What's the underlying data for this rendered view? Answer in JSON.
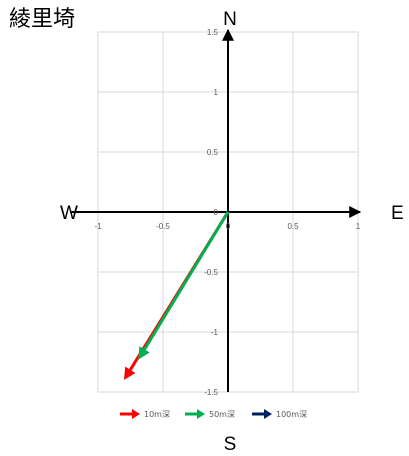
{
  "title": "綾里埼",
  "compass": {
    "north": "N",
    "south": "S",
    "east": "E",
    "west": "W"
  },
  "colors": {
    "grid": "#d9d9d9",
    "axis": "#000000",
    "tick_text": "#595959"
  },
  "chart_data": {
    "type": "scatter",
    "subtype": "vector-arrows",
    "xlim": [
      -1,
      1
    ],
    "ylim": [
      -1.5,
      1.5
    ],
    "x_ticks": [
      -1,
      -0.5,
      0,
      0.5,
      1
    ],
    "x_tick_labels": [
      "-1",
      "-0.5",
      "0",
      "0.5",
      "1"
    ],
    "y_ticks": [
      -1.5,
      -1,
      -0.5,
      0,
      0.5,
      1,
      1.5
    ],
    "y_tick_labels": [
      "-1.5",
      "-1",
      "-0.5",
      "0",
      "0.5",
      "1",
      "1.5"
    ],
    "grid": true,
    "legend_position": "bottom",
    "series": [
      {
        "name": "10m深",
        "color": "#ff0000",
        "x": [
          0,
          -0.8
        ],
        "y": [
          0,
          -1.4
        ]
      },
      {
        "name": "50m深",
        "color": "#00b050",
        "x": [
          0,
          -0.69
        ],
        "y": [
          0,
          -1.23
        ]
      },
      {
        "name": "100m深",
        "color": "#002060",
        "x": [
          0,
          0
        ],
        "y": [
          0,
          0
        ]
      }
    ]
  }
}
